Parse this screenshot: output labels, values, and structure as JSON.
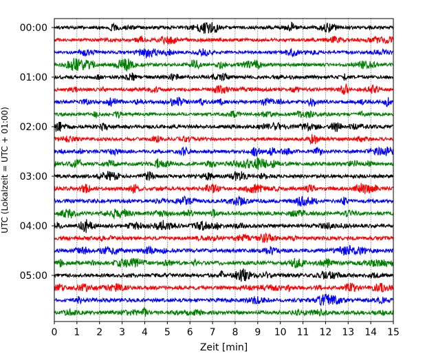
{
  "chart_data": {
    "type": "line",
    "title": "",
    "xlabel": "Zeit  [min]",
    "ylabel": "UTC (Lokalzeit = UTC + 01:00)",
    "xlim": [
      0,
      15
    ],
    "x_ticks": [
      "0",
      "1",
      "2",
      "3",
      "4",
      "5",
      "6",
      "7",
      "8",
      "9",
      "10",
      "11",
      "12",
      "13",
      "14",
      "15"
    ],
    "y_ticks": [
      "00:00",
      "01:00",
      "02:00",
      "03:00",
      "04:00",
      "05:00"
    ],
    "grid": "vertical dotted at each minute",
    "trace_interval_minutes": 15,
    "trace_colors": [
      "#000000",
      "#ff0000",
      "#0000ff",
      "#008000"
    ],
    "series": [
      {
        "start": "00:00",
        "color": "#000000",
        "amplitude": 0.6
      },
      {
        "start": "00:15",
        "color": "#ff0000",
        "amplitude": 0.7
      },
      {
        "start": "00:30",
        "color": "#0000ff",
        "amplitude": 0.55
      },
      {
        "start": "00:45",
        "color": "#008000",
        "amplitude": 0.65
      },
      {
        "start": "01:00",
        "color": "#000000",
        "amplitude": 0.75
      },
      {
        "start": "01:15",
        "color": "#ff0000",
        "amplitude": 0.7
      },
      {
        "start": "01:30",
        "color": "#0000ff",
        "amplitude": 0.7
      },
      {
        "start": "01:45",
        "color": "#008000",
        "amplitude": 0.6
      },
      {
        "start": "02:00",
        "color": "#000000",
        "amplitude": 0.8
      },
      {
        "start": "02:15",
        "color": "#ff0000",
        "amplitude": 0.65
      },
      {
        "start": "02:30",
        "color": "#0000ff",
        "amplitude": 0.7
      },
      {
        "start": "02:45",
        "color": "#008000",
        "amplitude": 0.8
      },
      {
        "start": "03:00",
        "color": "#000000",
        "amplitude": 0.75
      },
      {
        "start": "03:15",
        "color": "#ff0000",
        "amplitude": 0.85
      },
      {
        "start": "03:30",
        "color": "#0000ff",
        "amplitude": 0.8
      },
      {
        "start": "03:45",
        "color": "#008000",
        "amplitude": 0.85
      },
      {
        "start": "04:00",
        "color": "#000000",
        "amplitude": 0.8
      },
      {
        "start": "04:15",
        "color": "#ff0000",
        "amplitude": 0.85
      },
      {
        "start": "04:30",
        "color": "#0000ff",
        "amplitude": 0.9
      },
      {
        "start": "04:45",
        "color": "#008000",
        "amplitude": 0.9
      },
      {
        "start": "05:00",
        "color": "#000000",
        "amplitude": 0.85
      },
      {
        "start": "05:15",
        "color": "#ff0000",
        "amplitude": 0.85
      },
      {
        "start": "05:30",
        "color": "#0000ff",
        "amplitude": 0.85
      },
      {
        "start": "05:45",
        "color": "#008000",
        "amplitude": 0.9
      }
    ]
  }
}
